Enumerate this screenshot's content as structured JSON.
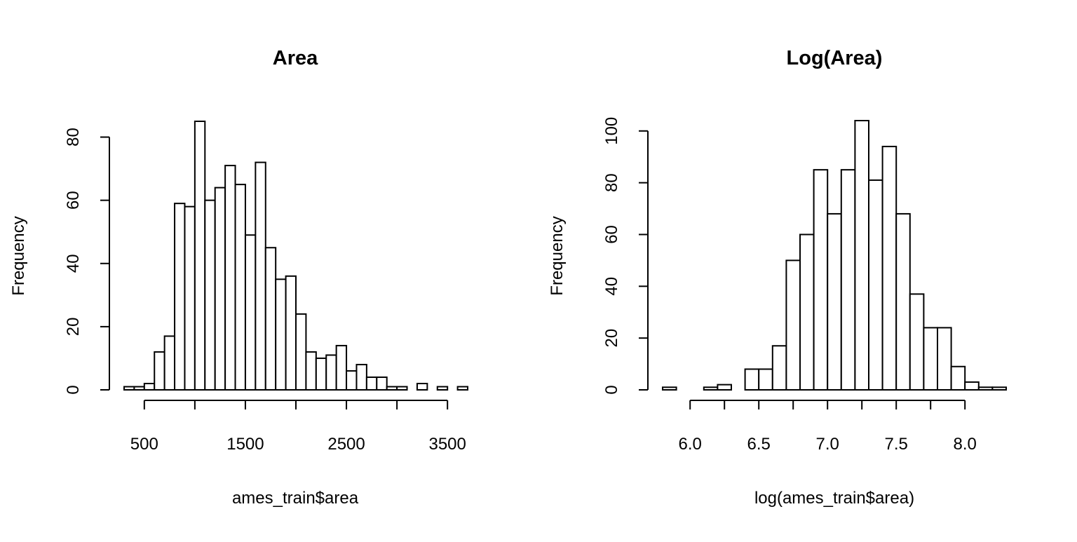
{
  "chart_data": [
    {
      "type": "bar",
      "title": "Area",
      "xlabel": "ames_train$area",
      "ylabel": "Frequency",
      "bin_edges": [
        300,
        400,
        500,
        600,
        700,
        800,
        900,
        1000,
        1100,
        1200,
        1300,
        1400,
        1500,
        1600,
        1700,
        1800,
        1900,
        2000,
        2100,
        2200,
        2300,
        2400,
        2500,
        2600,
        2700,
        2800,
        2900,
        3000,
        3100,
        3200,
        3300,
        3400,
        3500,
        3600,
        3700
      ],
      "values": [
        1,
        1,
        2,
        12,
        17,
        59,
        58,
        85,
        60,
        64,
        71,
        65,
        49,
        72,
        45,
        35,
        36,
        24,
        12,
        10,
        11,
        14,
        6,
        8,
        4,
        4,
        1,
        1,
        0,
        2,
        0,
        1,
        0,
        1
      ],
      "xticks": [
        500,
        1500,
        2500,
        3500
      ],
      "xtick_labels": [
        "500",
        "1500",
        "2500",
        "3500"
      ],
      "yticks": [
        0,
        20,
        40,
        60,
        80
      ],
      "ytick_labels": [
        "0",
        "20",
        "40",
        "60",
        "80"
      ],
      "xlim": [
        300,
        3700
      ],
      "ylim": [
        0,
        85
      ],
      "grid": false,
      "legend": false
    },
    {
      "type": "bar",
      "title": "Log(Area)",
      "xlabel": "log(ames_train$area)",
      "ylabel": "Frequency",
      "bin_edges": [
        5.8,
        5.9,
        6.0,
        6.1,
        6.2,
        6.3,
        6.4,
        6.5,
        6.6,
        6.7,
        6.8,
        6.9,
        7.0,
        7.1,
        7.2,
        7.3,
        7.4,
        7.5,
        7.6,
        7.7,
        7.8,
        7.9,
        8.0,
        8.1,
        8.2,
        8.3
      ],
      "values": [
        1,
        0,
        0,
        1,
        2,
        0,
        8,
        8,
        17,
        50,
        60,
        85,
        68,
        85,
        104,
        81,
        94,
        68,
        37,
        24,
        24,
        9,
        3,
        1,
        1
      ],
      "xticks": [
        6.0,
        6.5,
        7.0,
        7.5,
        8.0
      ],
      "xtick_labels": [
        "6.0",
        "6.5",
        "7.0",
        "7.5",
        "8.0"
      ],
      "yticks": [
        0,
        20,
        40,
        60,
        80,
        100
      ],
      "ytick_labels": [
        "0",
        "20",
        "40",
        "60",
        "80",
        "100"
      ],
      "xlim": [
        5.8,
        8.3
      ],
      "ylim": [
        0,
        104
      ],
      "grid": false,
      "legend": false
    }
  ]
}
